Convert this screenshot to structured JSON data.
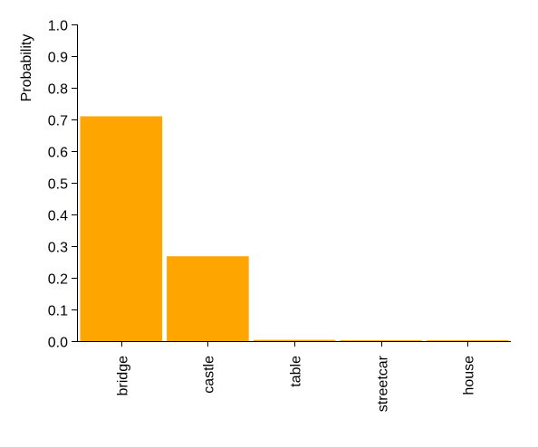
{
  "chart_data": {
    "type": "bar",
    "title": "",
    "xlabel": "",
    "ylabel": "Probability",
    "categories": [
      "bridge",
      "castle",
      "table",
      "streetcar",
      "house"
    ],
    "values": [
      0.71,
      0.268,
      0.004,
      0.001,
      0.001
    ],
    "ylim": [
      0,
      1.0
    ],
    "yticks": [
      "0.0",
      "0.1",
      "0.2",
      "0.3",
      "0.4",
      "0.5",
      "0.6",
      "0.7",
      "0.8",
      "0.9",
      "1.0"
    ],
    "bar_color": "#ffa500",
    "grid": false,
    "legend": "none"
  }
}
